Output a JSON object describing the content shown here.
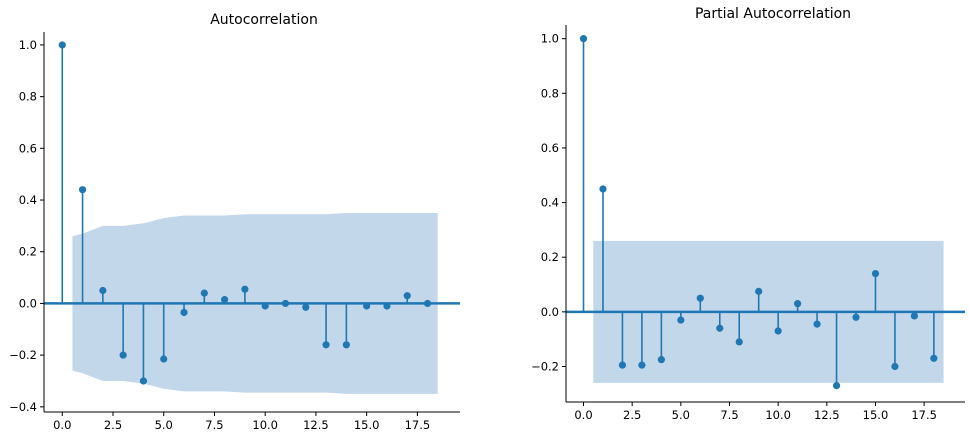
{
  "chart_data": [
    {
      "type": "stem",
      "title": "Autocorrelation",
      "xlabel": "",
      "ylabel": "",
      "x_ticks": [
        "0.0",
        "2.5",
        "5.0",
        "7.5",
        "10.0",
        "12.5",
        "15.0",
        "17.5"
      ],
      "y_ticks": [
        "−0.4",
        "−0.2",
        "0.0",
        "0.2",
        "0.4",
        "0.6",
        "0.8",
        "1.0"
      ],
      "xlim": [
        -0.9,
        19.6
      ],
      "ylim": [
        -0.42,
        1.05
      ],
      "color": "#1f77b4",
      "band_color": "#c3d7ea",
      "lags": [
        0,
        1,
        2,
        3,
        4,
        5,
        6,
        7,
        8,
        9,
        10,
        11,
        12,
        13,
        14,
        15,
        16,
        17,
        18
      ],
      "values": [
        1.0,
        0.44,
        0.05,
        -0.2,
        -0.3,
        -0.215,
        -0.035,
        0.04,
        0.015,
        0.055,
        -0.01,
        0.0,
        -0.015,
        -0.16,
        -0.16,
        -0.01,
        -0.01,
        0.03,
        0.0
      ],
      "confidence_band": {
        "x": [
          0.5,
          1.0,
          2.0,
          3.0,
          4.0,
          5.0,
          6.0,
          7.0,
          8.0,
          9.0,
          10.0,
          11.0,
          12.0,
          13.0,
          14.0,
          15.0,
          16.0,
          17.0,
          18.5
        ],
        "upper": [
          0.26,
          0.27,
          0.3,
          0.3,
          0.31,
          0.33,
          0.34,
          0.34,
          0.34,
          0.345,
          0.345,
          0.345,
          0.345,
          0.345,
          0.35,
          0.35,
          0.35,
          0.35,
          0.35
        ],
        "lower": [
          -0.26,
          -0.27,
          -0.3,
          -0.3,
          -0.31,
          -0.33,
          -0.34,
          -0.34,
          -0.34,
          -0.345,
          -0.345,
          -0.345,
          -0.345,
          -0.345,
          -0.35,
          -0.35,
          -0.35,
          -0.35,
          -0.35
        ]
      }
    },
    {
      "type": "stem",
      "title": "Partial Autocorrelation",
      "xlabel": "",
      "ylabel": "",
      "x_ticks": [
        "0.0",
        "2.5",
        "5.0",
        "7.5",
        "10.0",
        "12.5",
        "15.0",
        "17.5"
      ],
      "y_ticks": [
        "−0.2",
        "0.0",
        "0.2",
        "0.4",
        "0.6",
        "0.8",
        "1.0"
      ],
      "xlim": [
        -0.9,
        19.6
      ],
      "ylim": [
        -0.33,
        1.05
      ],
      "color": "#1f77b4",
      "band_color": "#c3d7ea",
      "lags": [
        0,
        1,
        2,
        3,
        4,
        5,
        6,
        7,
        8,
        9,
        10,
        11,
        12,
        13,
        14,
        15,
        16,
        17,
        18
      ],
      "values": [
        1.0,
        0.45,
        -0.195,
        -0.195,
        -0.175,
        -0.03,
        0.05,
        -0.06,
        -0.11,
        0.075,
        -0.07,
        0.03,
        -0.045,
        -0.27,
        -0.02,
        0.14,
        -0.2,
        -0.015,
        -0.17
      ],
      "confidence_band": {
        "x": [
          0.5,
          18.5
        ],
        "upper": [
          0.26,
          0.26
        ],
        "lower": [
          -0.26,
          -0.26
        ]
      }
    }
  ]
}
